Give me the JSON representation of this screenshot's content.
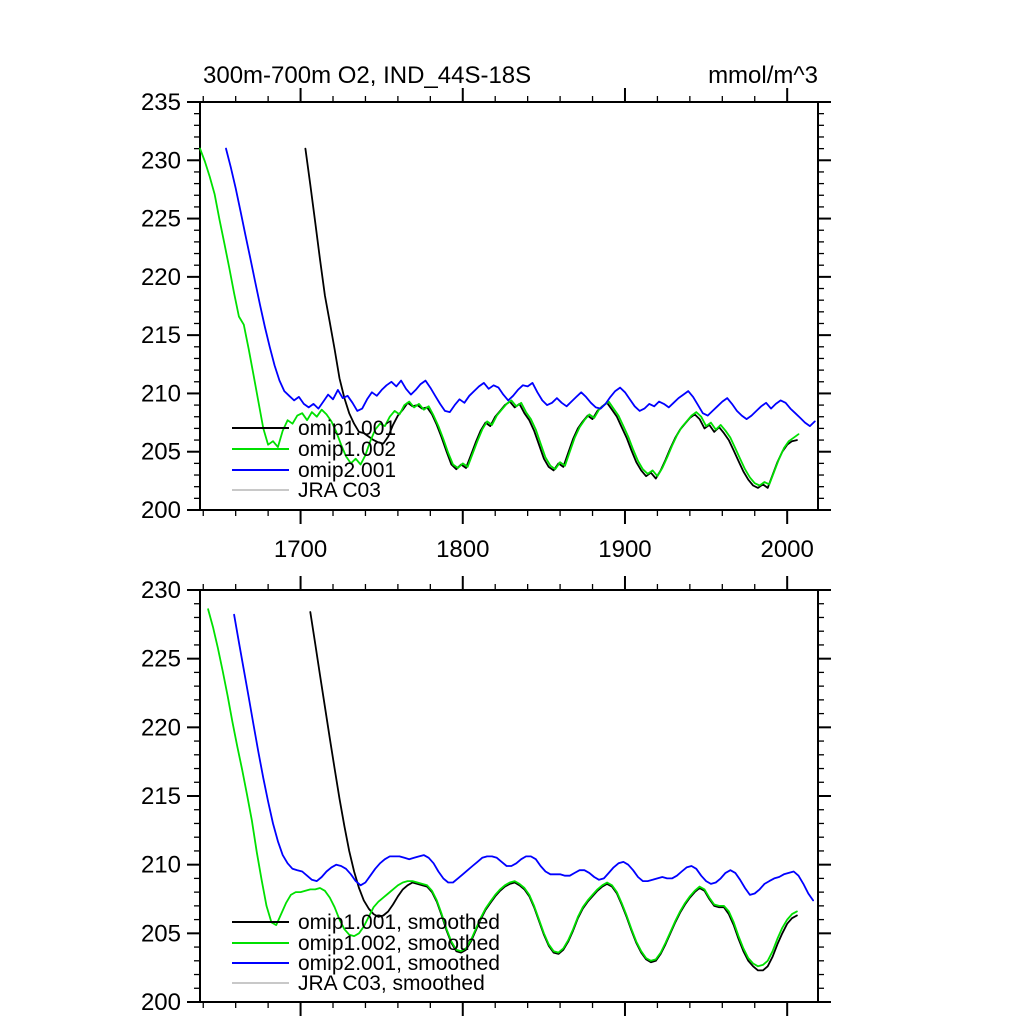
{
  "figure": {
    "title": "300m-700m O2, IND_44S-18S",
    "units_label": "mmol/m^3",
    "background": "#ffffff"
  },
  "chart_data": [
    {
      "type": "line",
      "panel": "top",
      "title": "300m-700m O2, IND_44S-18S",
      "units": "mmol/m^3",
      "xlim": [
        1638,
        2019
      ],
      "ylim": [
        200,
        235
      ],
      "x_major_ticks": [
        1700,
        1800,
        1900,
        2000
      ],
      "x_tick_labels": [
        "1700",
        "1800",
        "1900",
        "2000"
      ],
      "x_minor_step": 20,
      "y_major_step": 5,
      "y_minor_step": 1,
      "y_tick_labels": [
        "200",
        "205",
        "210",
        "215",
        "220",
        "225",
        "230",
        "235"
      ],
      "show_x_tick_labels": true,
      "grid": false,
      "legend_position": "inside lower-left",
      "legend": [
        {
          "label": "omip1.001",
          "color": "#000000"
        },
        {
          "label": "omip1.002",
          "color": "#00e000"
        },
        {
          "label": "omip2.001",
          "color": "#0000ff"
        },
        {
          "label": "JRA C03",
          "color": "#c8c8c8"
        }
      ],
      "series": [
        {
          "name": "omip1.001",
          "color": "#000000",
          "x_start": 1703,
          "x_step": 3,
          "visible": true,
          "y": [
            231.0,
            227.9,
            224.7,
            221.5,
            218.4,
            216.1,
            213.8,
            211.3,
            209.6,
            208.3,
            207.4,
            206.7,
            206.6,
            206.3,
            206.0,
            205.8,
            205.7,
            206.3,
            207.3,
            208.1,
            208.6,
            209.2,
            208.9,
            209.0,
            208.7,
            208.8,
            208.2,
            207.3,
            206.2,
            205.0,
            203.9,
            203.5,
            203.9,
            203.6,
            204.7,
            205.8,
            206.8,
            207.5,
            207.2,
            208.0,
            208.5,
            209.0,
            209.3,
            208.8,
            209.1,
            208.3,
            207.7,
            206.8,
            205.6,
            204.4,
            203.7,
            203.4,
            204.0,
            203.7,
            204.9,
            206.1,
            207.0,
            207.6,
            208.1,
            207.8,
            208.5,
            208.9,
            209.2,
            208.6,
            208.0,
            207.1,
            206.2,
            205.1,
            204.1,
            203.4,
            202.9,
            203.2,
            202.7,
            203.4,
            204.3,
            205.3,
            206.2,
            206.9,
            207.4,
            207.9,
            208.2,
            207.8,
            207.0,
            207.3,
            206.7,
            207.1,
            206.6,
            206.0,
            205.1,
            204.2,
            203.3,
            202.6,
            202.1,
            201.9,
            202.2,
            201.9,
            203.0,
            204.1,
            205.0,
            205.6,
            205.9,
            206.0
          ]
        },
        {
          "name": "omip1.002",
          "color": "#00e000",
          "x_start": 1638,
          "x_step": 3,
          "visible": true,
          "y": [
            231.0,
            229.9,
            228.6,
            227.1,
            224.9,
            222.9,
            220.8,
            218.6,
            216.6,
            215.9,
            213.8,
            211.6,
            209.3,
            207.0,
            205.6,
            205.9,
            205.4,
            206.8,
            207.7,
            207.4,
            208.1,
            208.3,
            207.7,
            208.4,
            208.0,
            208.6,
            208.2,
            207.6,
            206.7,
            205.6,
            204.6,
            204.0,
            204.4,
            203.9,
            204.7,
            205.9,
            206.9,
            207.4,
            207.2,
            208.0,
            208.5,
            208.2,
            209.0,
            209.3,
            208.8,
            209.1,
            208.6,
            208.9,
            208.1,
            207.2,
            206.1,
            204.9,
            203.9,
            203.6,
            204.0,
            203.7,
            204.8,
            205.9,
            206.9,
            207.6,
            207.3,
            208.1,
            208.6,
            209.1,
            209.4,
            208.9,
            209.2,
            208.4,
            207.8,
            206.9,
            205.7,
            204.5,
            203.8,
            203.5,
            204.1,
            203.8,
            205.0,
            206.2,
            207.1,
            207.7,
            208.2,
            207.9,
            208.6,
            209.0,
            209.3,
            208.7,
            208.1,
            207.2,
            206.3,
            205.2,
            204.2,
            203.5,
            203.1,
            203.4,
            202.9,
            203.6,
            204.5,
            205.5,
            206.4,
            207.1,
            207.6,
            208.1,
            208.4,
            208.0,
            207.2,
            207.5,
            206.9,
            207.3,
            206.8,
            206.2,
            205.3,
            204.4,
            203.5,
            202.8,
            202.3,
            202.1,
            202.4,
            202.2,
            203.3,
            204.4,
            205.3,
            205.9,
            206.2,
            206.5
          ]
        },
        {
          "name": "omip2.001",
          "color": "#0000ff",
          "x_start": 1654,
          "x_step": 3,
          "visible": true,
          "y": [
            231.0,
            229.4,
            227.6,
            225.6,
            223.6,
            221.6,
            219.6,
            217.6,
            215.7,
            214.0,
            212.4,
            211.1,
            210.2,
            209.8,
            209.4,
            209.7,
            209.1,
            208.8,
            209.1,
            208.7,
            209.3,
            209.9,
            209.5,
            210.3,
            209.6,
            209.8,
            209.2,
            208.5,
            208.7,
            209.5,
            210.1,
            209.8,
            210.3,
            210.7,
            211.0,
            210.6,
            211.1,
            210.4,
            209.9,
            210.3,
            210.8,
            211.1,
            210.5,
            209.8,
            209.1,
            208.5,
            208.4,
            209.0,
            209.5,
            209.2,
            209.8,
            210.2,
            210.6,
            210.9,
            210.4,
            210.7,
            210.5,
            209.9,
            209.4,
            209.8,
            210.3,
            210.7,
            210.6,
            210.9,
            210.1,
            209.4,
            209.0,
            209.2,
            209.6,
            209.2,
            208.9,
            209.3,
            209.7,
            210.1,
            209.7,
            209.2,
            208.8,
            208.7,
            209.1,
            209.7,
            210.2,
            210.5,
            210.1,
            209.5,
            208.9,
            208.5,
            208.7,
            209.1,
            208.9,
            209.3,
            209.1,
            208.8,
            209.2,
            209.6,
            209.9,
            210.2,
            209.7,
            209.0,
            208.3,
            208.1,
            208.5,
            208.9,
            209.3,
            209.6,
            209.1,
            208.5,
            208.1,
            207.8,
            208.1,
            208.5,
            208.9,
            209.2,
            208.7,
            209.1,
            209.4,
            209.2,
            208.7,
            208.3,
            207.9,
            207.5,
            207.2,
            207.6
          ]
        },
        {
          "name": "JRA C03",
          "color": "#c8c8c8",
          "x_start": 0,
          "x_step": 3,
          "visible": false,
          "y": []
        }
      ]
    },
    {
      "type": "line",
      "panel": "bottom",
      "title": "",
      "units": "",
      "xlim": [
        1638,
        2019
      ],
      "ylim": [
        200,
        230
      ],
      "x_major_ticks": [
        1700,
        1800,
        1900,
        2000
      ],
      "x_tick_labels": [
        "1700",
        "1800",
        "1900",
        "2000"
      ],
      "x_minor_step": 20,
      "y_major_step": 5,
      "y_minor_step": 1,
      "y_tick_labels": [
        "200",
        "205",
        "210",
        "215",
        "220",
        "225",
        "230"
      ],
      "show_x_tick_labels": false,
      "grid": false,
      "legend_position": "inside lower-left",
      "legend": [
        {
          "label": "omip1.001, smoothed",
          "color": "#000000"
        },
        {
          "label": "omip1.002, smoothed",
          "color": "#00e000"
        },
        {
          "label": "omip2.001, smoothed",
          "color": "#0000ff"
        },
        {
          "label": "JRA C03, smoothed",
          "color": "#c8c8c8"
        }
      ],
      "series": [
        {
          "name": "omip1.001, smoothed",
          "color": "#000000",
          "x_start": 1706,
          "x_step": 3,
          "visible": true,
          "y": [
            228.4,
            226.1,
            223.8,
            221.5,
            219.2,
            217.0,
            214.8,
            212.8,
            211.0,
            209.5,
            208.3,
            207.4,
            206.8,
            206.4,
            206.2,
            206.3,
            206.6,
            207.1,
            207.7,
            208.2,
            208.5,
            208.7,
            208.6,
            208.5,
            208.4,
            208.0,
            207.3,
            206.3,
            205.2,
            204.3,
            203.7,
            203.6,
            203.8,
            204.4,
            205.2,
            206.0,
            206.7,
            207.2,
            207.7,
            208.1,
            208.4,
            208.6,
            208.7,
            208.5,
            208.2,
            207.7,
            206.9,
            205.9,
            204.9,
            204.1,
            203.6,
            203.5,
            203.8,
            204.4,
            205.2,
            206.1,
            206.8,
            207.3,
            207.7,
            208.1,
            208.4,
            208.6,
            208.4,
            207.9,
            207.1,
            206.2,
            205.2,
            204.3,
            203.6,
            203.1,
            202.9,
            203.0,
            203.5,
            204.2,
            205.0,
            205.8,
            206.5,
            207.1,
            207.6,
            208.0,
            208.3,
            208.1,
            207.5,
            207.0,
            206.9,
            206.9,
            206.4,
            205.6,
            204.6,
            203.7,
            203.0,
            202.6,
            202.3,
            202.3,
            202.6,
            203.3,
            204.2,
            205.0,
            205.7,
            206.1,
            206.3
          ]
        },
        {
          "name": "omip1.002, smoothed",
          "color": "#00e000",
          "x_start": 1643,
          "x_step": 3,
          "visible": true,
          "y": [
            228.6,
            227.3,
            225.8,
            224.1,
            222.3,
            220.4,
            218.6,
            216.9,
            215.1,
            213.2,
            210.9,
            208.9,
            207.0,
            205.8,
            205.6,
            206.4,
            207.2,
            207.8,
            208.0,
            208.0,
            208.1,
            208.2,
            208.2,
            208.3,
            208.1,
            207.6,
            206.9,
            206.0,
            205.3,
            204.9,
            204.8,
            205.0,
            205.5,
            206.2,
            206.9,
            207.3,
            207.6,
            207.9,
            208.2,
            208.5,
            208.7,
            208.8,
            208.8,
            208.7,
            208.6,
            208.5,
            208.1,
            207.4,
            206.4,
            205.3,
            204.4,
            203.8,
            203.7,
            203.9,
            204.5,
            205.3,
            206.1,
            206.8,
            207.3,
            207.8,
            208.2,
            208.5,
            208.7,
            208.8,
            208.6,
            208.3,
            207.8,
            207.0,
            206.0,
            205.0,
            204.2,
            203.7,
            203.6,
            203.9,
            204.5,
            205.3,
            206.2,
            206.9,
            207.4,
            207.8,
            208.2,
            208.5,
            208.7,
            208.5,
            208.0,
            207.2,
            206.3,
            205.3,
            204.4,
            203.7,
            203.2,
            203.0,
            203.1,
            203.6,
            204.3,
            205.1,
            205.9,
            206.6,
            207.2,
            207.7,
            208.1,
            208.4,
            208.2,
            207.6,
            207.1,
            207.0,
            207.0,
            206.6,
            205.8,
            204.8,
            203.9,
            203.2,
            202.8,
            202.6,
            202.7,
            203.0,
            203.7,
            204.6,
            205.4,
            206.0,
            206.4,
            206.6
          ]
        },
        {
          "name": "omip2.001, smoothed",
          "color": "#0000ff",
          "x_start": 1659,
          "x_step": 3,
          "visible": true,
          "y": [
            228.2,
            226.2,
            224.2,
            222.2,
            220.2,
            218.2,
            216.3,
            214.6,
            213.0,
            211.7,
            210.7,
            210.1,
            209.7,
            209.6,
            209.5,
            209.2,
            208.9,
            208.8,
            209.1,
            209.5,
            209.8,
            210.0,
            209.9,
            209.7,
            209.3,
            208.8,
            208.5,
            208.7,
            209.2,
            209.7,
            210.1,
            210.4,
            210.6,
            210.6,
            210.6,
            210.5,
            210.4,
            210.5,
            210.6,
            210.7,
            210.5,
            210.1,
            209.5,
            209.0,
            208.7,
            208.7,
            209.0,
            209.3,
            209.6,
            209.9,
            210.2,
            210.5,
            210.6,
            210.6,
            210.5,
            210.2,
            209.9,
            209.9,
            210.1,
            210.4,
            210.6,
            210.6,
            210.4,
            209.9,
            209.5,
            209.3,
            209.3,
            209.3,
            209.2,
            209.2,
            209.4,
            209.6,
            209.6,
            209.4,
            209.1,
            208.9,
            209.0,
            209.4,
            209.8,
            210.1,
            210.2,
            210.0,
            209.6,
            209.1,
            208.8,
            208.8,
            208.9,
            209.0,
            209.1,
            209.0,
            209.0,
            209.2,
            209.5,
            209.8,
            209.9,
            209.7,
            209.2,
            208.8,
            208.6,
            208.7,
            209.0,
            209.4,
            209.6,
            209.4,
            208.9,
            208.3,
            207.8,
            207.9,
            208.2,
            208.6,
            208.8,
            209.0,
            209.1,
            209.3,
            209.4,
            209.5,
            209.2,
            208.6,
            207.9,
            207.4
          ]
        },
        {
          "name": "JRA C03, smoothed",
          "color": "#c8c8c8",
          "x_start": 0,
          "x_step": 3,
          "visible": false,
          "y": []
        }
      ]
    }
  ]
}
